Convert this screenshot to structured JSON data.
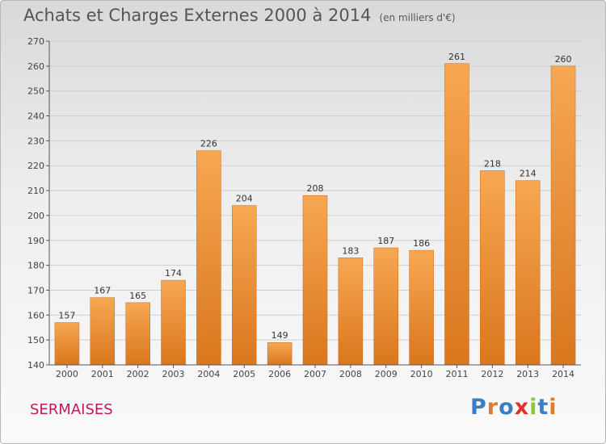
{
  "header": {
    "title": "Achats et Charges Externes 2000 à 2014",
    "unit": "(en milliers d'€)"
  },
  "footer": {
    "city": "SERMAISES",
    "logo": "Proxiti"
  },
  "chart_data": {
    "type": "bar",
    "title": "Achats et Charges Externes 2000 à 2014",
    "subtitle": "(en milliers d'€)",
    "xlabel": "",
    "ylabel": "",
    "categories": [
      "2000",
      "2001",
      "2002",
      "2003",
      "2004",
      "2005",
      "2006",
      "2007",
      "2008",
      "2009",
      "2010",
      "2011",
      "2012",
      "2013",
      "2014"
    ],
    "values": [
      157,
      167,
      165,
      174,
      226,
      204,
      149,
      208,
      183,
      187,
      186,
      261,
      218,
      214,
      260
    ],
    "ylim": [
      140,
      270
    ],
    "yticks": [
      140,
      150,
      160,
      170,
      180,
      190,
      200,
      210,
      220,
      230,
      240,
      250,
      260,
      270
    ],
    "grid": true,
    "colors": {
      "bar_top": "#f7a752",
      "bar_bottom": "#d9771e",
      "bar_edge": "#c9691a"
    }
  }
}
